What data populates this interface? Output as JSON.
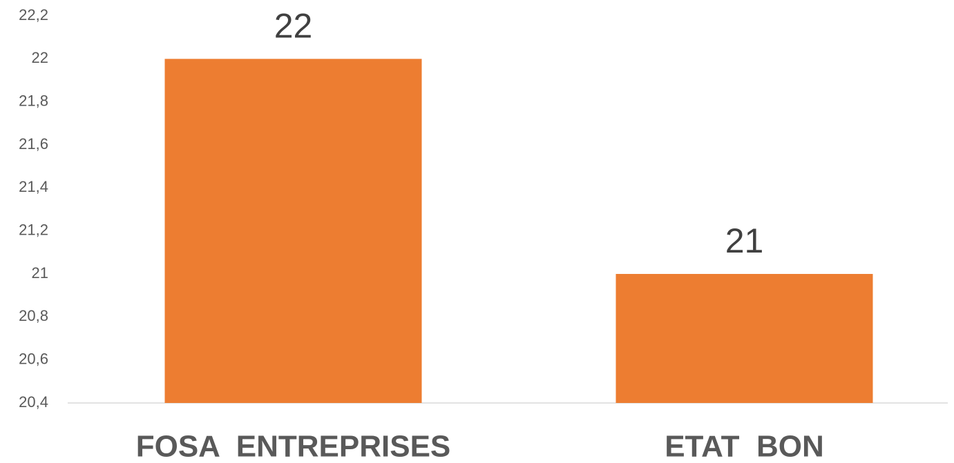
{
  "chart_data": {
    "type": "bar",
    "categories": [
      "FOSA  ENTREPRISES",
      "ETAT  BON"
    ],
    "values": [
      22,
      21
    ],
    "color": "#ed7d31",
    "ylim": [
      20.4,
      22.2
    ],
    "yticks": [
      {
        "value": 20.4,
        "label": "20,4"
      },
      {
        "value": 20.6,
        "label": "20,6"
      },
      {
        "value": 20.8,
        "label": "20,8"
      },
      21,
      {
        "value": 21.2,
        "label": "21,2"
      },
      {
        "value": 21.4,
        "label": "21,4"
      },
      {
        "value": 21.6,
        "label": "21,6"
      },
      {
        "value": 21.8,
        "label": "21,8"
      },
      22,
      {
        "value": 22.2,
        "label": "22,2"
      }
    ],
    "grid": false
  }
}
